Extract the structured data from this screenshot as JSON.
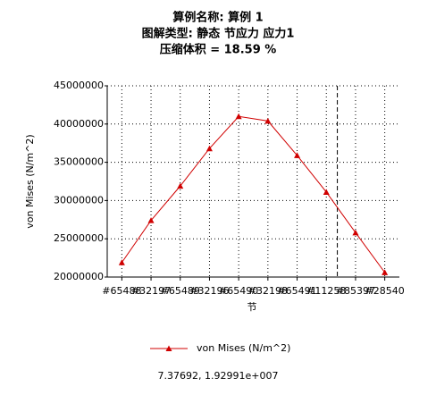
{
  "chart_data": {
    "type": "line",
    "title": [
      "算例名称: 算例 1",
      "图解类型: 静态 节应力 应力1",
      "压缩体积 = 18.59 %"
    ],
    "xlabel": "节",
    "ylabel": "von Mises (N/m^2)",
    "categories": [
      "#65488",
      "#32197",
      "#65489",
      "#32196",
      "#65490",
      "#32198",
      "#65491",
      "#11258",
      "#85397",
      "#28540"
    ],
    "series": [
      {
        "name": "von Mises (N/m^2)",
        "color": "#d00000",
        "values": [
          21900000,
          27400000,
          31900000,
          36800000,
          41000000,
          40400000,
          35900000,
          31100000,
          25800000,
          20600000
        ]
      }
    ],
    "ylim": [
      20000000,
      45000000
    ],
    "yticks": [
      20000000,
      25000000,
      30000000,
      35000000,
      40000000,
      45000000
    ],
    "grid": true,
    "legend": "bottom",
    "probe": {
      "x": 7.37692,
      "label": "7.37692, 1.92991e+007"
    }
  }
}
